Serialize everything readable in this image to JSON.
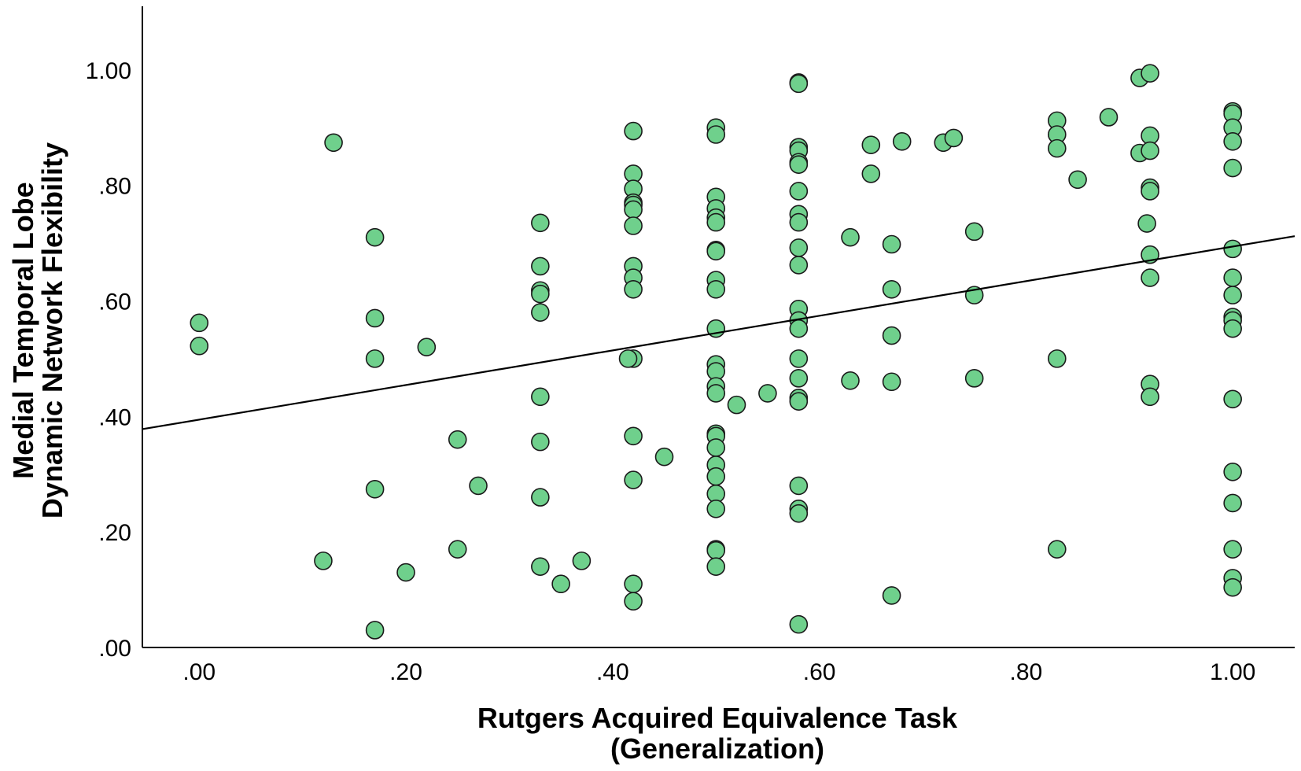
{
  "chart_data": {
    "type": "scatter",
    "title": "",
    "xlabel_lines": [
      "Rutgers Acquired Equivalence Task",
      "(Generalization)"
    ],
    "ylabel_lines": [
      "Medial Temporal Lobe",
      "Dynamic Network Flexibility"
    ],
    "xlim": [
      -0.055,
      1.06
    ],
    "ylim": [
      0.0,
      1.11
    ],
    "x_ticks": [
      {
        "value": 0.0,
        "label": ".00"
      },
      {
        "value": 0.2,
        "label": ".20"
      },
      {
        "value": 0.4,
        "label": ".40"
      },
      {
        "value": 0.6,
        "label": ".60"
      },
      {
        "value": 0.8,
        "label": ".80"
      },
      {
        "value": 1.0,
        "label": "1.00"
      }
    ],
    "y_ticks": [
      {
        "value": 0.0,
        "label": ".00"
      },
      {
        "value": 0.2,
        "label": ".20"
      },
      {
        "value": 0.4,
        "label": ".40"
      },
      {
        "value": 0.6,
        "label": ".60"
      },
      {
        "value": 0.8,
        "label": ".80"
      },
      {
        "value": 1.0,
        "label": "1.00"
      }
    ],
    "grid": false,
    "colors": {
      "marker_fill": "#6fd08c",
      "marker_stroke": "#1a1a1a",
      "line": "#000000",
      "axis": "#000000"
    },
    "fit_line": {
      "x": [
        -0.055,
        1.06
      ],
      "y": [
        0.378,
        0.712
      ]
    },
    "points": [
      [
        0.0,
        0.562
      ],
      [
        0.0,
        0.522
      ],
      [
        0.12,
        0.15
      ],
      [
        0.13,
        0.874
      ],
      [
        0.17,
        0.71
      ],
      [
        0.17,
        0.57
      ],
      [
        0.17,
        0.5
      ],
      [
        0.17,
        0.274
      ],
      [
        0.17,
        0.03
      ],
      [
        0.2,
        0.13
      ],
      [
        0.22,
        0.52
      ],
      [
        0.25,
        0.36
      ],
      [
        0.25,
        0.17
      ],
      [
        0.27,
        0.28
      ],
      [
        0.33,
        0.735
      ],
      [
        0.33,
        0.66
      ],
      [
        0.33,
        0.618
      ],
      [
        0.33,
        0.612
      ],
      [
        0.33,
        0.58
      ],
      [
        0.33,
        0.434
      ],
      [
        0.33,
        0.356
      ],
      [
        0.33,
        0.26
      ],
      [
        0.33,
        0.14
      ],
      [
        0.35,
        0.11
      ],
      [
        0.37,
        0.15
      ],
      [
        0.42,
        0.894
      ],
      [
        0.42,
        0.82
      ],
      [
        0.42,
        0.794
      ],
      [
        0.42,
        0.77
      ],
      [
        0.42,
        0.766
      ],
      [
        0.42,
        0.758
      ],
      [
        0.42,
        0.73
      ],
      [
        0.42,
        0.66
      ],
      [
        0.42,
        0.64
      ],
      [
        0.42,
        0.62
      ],
      [
        0.42,
        0.5
      ],
      [
        0.415,
        0.5
      ],
      [
        0.42,
        0.366
      ],
      [
        0.42,
        0.29
      ],
      [
        0.42,
        0.11
      ],
      [
        0.42,
        0.08
      ],
      [
        0.45,
        0.33
      ],
      [
        0.5,
        0.9
      ],
      [
        0.5,
        0.888
      ],
      [
        0.5,
        0.78
      ],
      [
        0.5,
        0.76
      ],
      [
        0.5,
        0.744
      ],
      [
        0.5,
        0.736
      ],
      [
        0.5,
        0.688
      ],
      [
        0.5,
        0.686
      ],
      [
        0.5,
        0.636
      ],
      [
        0.5,
        0.62
      ],
      [
        0.5,
        0.552
      ],
      [
        0.5,
        0.49
      ],
      [
        0.5,
        0.478
      ],
      [
        0.5,
        0.452
      ],
      [
        0.5,
        0.44
      ],
      [
        0.5,
        0.37
      ],
      [
        0.5,
        0.366
      ],
      [
        0.5,
        0.346
      ],
      [
        0.5,
        0.316
      ],
      [
        0.5,
        0.296
      ],
      [
        0.5,
        0.266
      ],
      [
        0.5,
        0.24
      ],
      [
        0.5,
        0.17
      ],
      [
        0.5,
        0.168
      ],
      [
        0.5,
        0.14
      ],
      [
        0.52,
        0.42
      ],
      [
        0.55,
        0.44
      ],
      [
        0.58,
        0.978
      ],
      [
        0.58,
        0.976
      ],
      [
        0.58,
        0.866
      ],
      [
        0.58,
        0.86
      ],
      [
        0.58,
        0.84
      ],
      [
        0.58,
        0.836
      ],
      [
        0.58,
        0.79
      ],
      [
        0.58,
        0.75
      ],
      [
        0.58,
        0.736
      ],
      [
        0.58,
        0.692
      ],
      [
        0.58,
        0.662
      ],
      [
        0.58,
        0.586
      ],
      [
        0.58,
        0.566
      ],
      [
        0.58,
        0.552
      ],
      [
        0.58,
        0.5
      ],
      [
        0.58,
        0.466
      ],
      [
        0.58,
        0.432
      ],
      [
        0.58,
        0.426
      ],
      [
        0.58,
        0.28
      ],
      [
        0.58,
        0.24
      ],
      [
        0.58,
        0.232
      ],
      [
        0.58,
        0.04
      ],
      [
        0.63,
        0.71
      ],
      [
        0.63,
        0.462
      ],
      [
        0.65,
        0.87
      ],
      [
        0.65,
        0.82
      ],
      [
        0.67,
        0.698
      ],
      [
        0.67,
        0.62
      ],
      [
        0.67,
        0.54
      ],
      [
        0.67,
        0.46
      ],
      [
        0.67,
        0.09
      ],
      [
        0.68,
        0.876
      ],
      [
        0.72,
        0.874
      ],
      [
        0.73,
        0.882
      ],
      [
        0.75,
        0.72
      ],
      [
        0.75,
        0.61
      ],
      [
        0.75,
        0.466
      ],
      [
        0.83,
        0.912
      ],
      [
        0.83,
        0.888
      ],
      [
        0.83,
        0.864
      ],
      [
        0.83,
        0.5
      ],
      [
        0.83,
        0.17
      ],
      [
        0.85,
        0.81
      ],
      [
        0.88,
        0.918
      ],
      [
        0.91,
        0.986
      ],
      [
        0.92,
        0.994
      ],
      [
        0.91,
        0.856
      ],
      [
        0.92,
        0.886
      ],
      [
        0.92,
        0.86
      ],
      [
        0.92,
        0.796
      ],
      [
        0.92,
        0.79
      ],
      [
        0.917,
        0.734
      ],
      [
        0.92,
        0.68
      ],
      [
        0.92,
        0.64
      ],
      [
        0.92,
        0.456
      ],
      [
        0.92,
        0.434
      ],
      [
        1.0,
        0.928
      ],
      [
        1.0,
        0.924
      ],
      [
        1.0,
        0.9
      ],
      [
        1.0,
        0.876
      ],
      [
        1.0,
        0.83
      ],
      [
        1.0,
        0.69
      ],
      [
        1.0,
        0.64
      ],
      [
        1.0,
        0.61
      ],
      [
        1.0,
        0.572
      ],
      [
        1.0,
        0.566
      ],
      [
        1.0,
        0.552
      ],
      [
        1.0,
        0.43
      ],
      [
        1.0,
        0.304
      ],
      [
        1.0,
        0.25
      ],
      [
        1.0,
        0.17
      ],
      [
        1.0,
        0.12
      ],
      [
        1.0,
        0.104
      ]
    ]
  }
}
